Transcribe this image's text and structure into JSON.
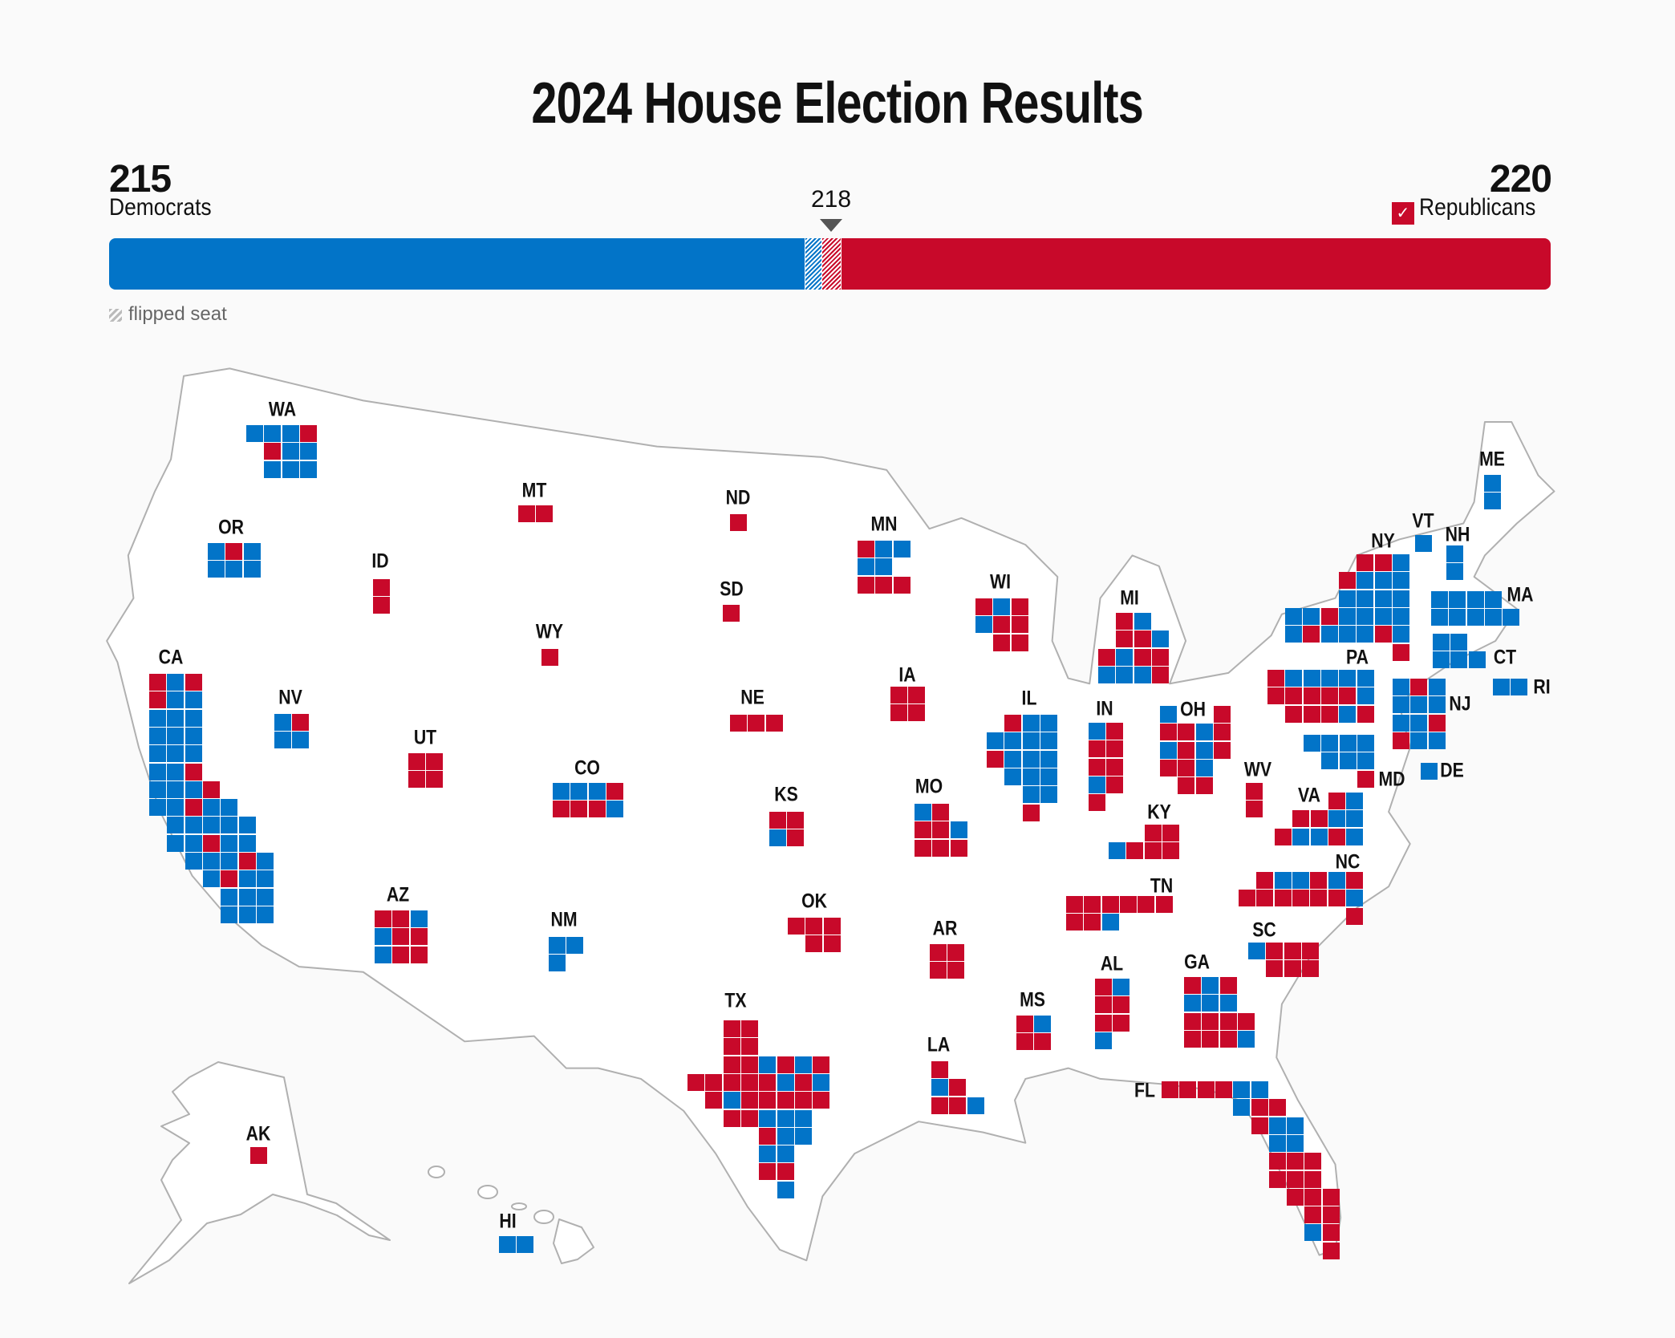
{
  "title": "2024 House Election Results",
  "colors": {
    "dem": "#0274c8",
    "rep": "#c8092a",
    "flipped_legend": "#bbbbbb"
  },
  "summary": {
    "total_seats": 435,
    "majority_label": "218",
    "dem": {
      "count": "215",
      "label": "Democrats",
      "seats": 215,
      "flipped": 5
    },
    "rep": {
      "count": "220",
      "label": "Republicans",
      "seats": 220,
      "flipped": 6,
      "winner_icon": "checkmark-icon",
      "check": "✓"
    }
  },
  "legend": {
    "flipped_label": "flipped seat"
  },
  "states": [
    {
      "abbr": "WA",
      "cells": [
        "DDDR",
        ".RDD",
        ".DDD"
      ]
    },
    {
      "abbr": "OR",
      "cells": [
        "DRD",
        "DDD"
      ]
    },
    {
      "abbr": "CA",
      "cells": [
        "RDR",
        "RDD",
        "DDD",
        "DDD",
        "DDD",
        "DDR",
        "DDDR",
        "DDRDD",
        ".DDDDD",
        ".DDRDD",
        "..DDDRD",
        "...DRDD",
        "....DDD",
        "....DDD"
      ]
    },
    {
      "abbr": "NV",
      "cells": [
        "DR",
        "DD"
      ]
    },
    {
      "abbr": "ID",
      "cells": [
        "R",
        "R"
      ]
    },
    {
      "abbr": "MT",
      "cells": [
        "RR"
      ]
    },
    {
      "abbr": "WY",
      "cells": [
        "R"
      ]
    },
    {
      "abbr": "UT",
      "cells": [
        "RR",
        "RR"
      ]
    },
    {
      "abbr": "CO",
      "cells": [
        "DDDR",
        "RRRD"
      ]
    },
    {
      "abbr": "AZ",
      "cells": [
        "RRD",
        "DRR",
        "DRR"
      ]
    },
    {
      "abbr": "NM",
      "cells": [
        "DD",
        "D."
      ]
    },
    {
      "abbr": "ND",
      "cells": [
        "R"
      ]
    },
    {
      "abbr": "SD",
      "cells": [
        "R"
      ]
    },
    {
      "abbr": "NE",
      "cells": [
        "RRR"
      ]
    },
    {
      "abbr": "KS",
      "cells": [
        "RR",
        "DR"
      ]
    },
    {
      "abbr": "OK",
      "cells": [
        "RRR",
        ".RR"
      ]
    },
    {
      "abbr": "TX",
      "cells": [
        "..RR",
        "..RR",
        "..RRDRDR",
        "RRRRRDRD",
        ".RDRRRRR",
        "..RRDDD",
        "....RDD",
        "....DD",
        "....RR",
        ".....D"
      ]
    },
    {
      "abbr": "MN",
      "cells": [
        "RDD",
        "DD.",
        "RRR"
      ]
    },
    {
      "abbr": "IA",
      "cells": [
        "RR",
        "RR"
      ]
    },
    {
      "abbr": "MO",
      "cells": [
        "DR.",
        "RRD",
        "RRR"
      ]
    },
    {
      "abbr": "AR",
      "cells": [
        "RR",
        "RR"
      ]
    },
    {
      "abbr": "LA",
      "cells": [
        "R..",
        "DR.",
        "RRD"
      ]
    },
    {
      "abbr": "WI",
      "cells": [
        "RDR",
        "DRR",
        ".RR"
      ]
    },
    {
      "abbr": "IL",
      "cells": [
        ".RDD",
        "DDDD",
        "RDDD",
        ".DDD",
        "..DD",
        "..R."
      ]
    },
    {
      "abbr": "MI",
      "cells": [
        ".RD.",
        ".RRD",
        "RDRR",
        "DDDR"
      ]
    },
    {
      "abbr": "IN",
      "cells": [
        "DR",
        "RR",
        "RR",
        "DR",
        "R."
      ]
    },
    {
      "abbr": "OH",
      "cells": [
        "D..R",
        "RRDR",
        "DRDR",
        "RRD.",
        ".RR."
      ]
    },
    {
      "abbr": "KY",
      "cells": [
        "..RR",
        "DRRR"
      ]
    },
    {
      "abbr": "TN",
      "cells": [
        "RRRRRR",
        "RRD..."
      ]
    },
    {
      "abbr": "MS",
      "cells": [
        "RD",
        "RR"
      ]
    },
    {
      "abbr": "AL",
      "cells": [
        "RD",
        "RR",
        "RR",
        "D."
      ]
    },
    {
      "abbr": "GA",
      "cells": [
        "RDR.",
        "DDD.",
        "RRRR",
        "RRRD"
      ]
    },
    {
      "abbr": "FL",
      "cells": [
        "RRRRDD",
        "....DRR",
        ".....RDD",
        "......DD",
        "......RRR",
        "......RRR",
        ".......RRR",
        "........RR",
        "........DR",
        ".........R"
      ]
    },
    {
      "abbr": "SC",
      "cells": [
        "DRRR",
        ".RRR"
      ]
    },
    {
      "abbr": "NC",
      "cells": [
        ".RDDRDR",
        "RRRRRRD",
        "......R"
      ]
    },
    {
      "abbr": "VA",
      "cells": [
        "...RD",
        ".RRDD",
        "RDDRD"
      ]
    },
    {
      "abbr": "WV",
      "cells": [
        "R",
        "R"
      ]
    },
    {
      "abbr": "MD",
      "cells": [
        "DDDD",
        ".DDD",
        "...R"
      ]
    },
    {
      "abbr": "DE",
      "cells": [
        "D"
      ]
    },
    {
      "abbr": "PA",
      "cells": [
        "RDDDDD",
        "RRRRRD",
        ".RRRDR"
      ]
    },
    {
      "abbr": "NJ",
      "cells": [
        "DRD",
        "DDD",
        "DDR",
        "RDD"
      ]
    },
    {
      "abbr": "NY",
      "cells": [
        "....RRD",
        "...RDDD",
        "...DDDD",
        "DDRDDDD",
        "DRDDDRD",
        "......R"
      ]
    },
    {
      "abbr": "CT",
      "cells": [
        "DD.",
        "DDD"
      ]
    },
    {
      "abbr": "RI",
      "cells": [
        "DD"
      ]
    },
    {
      "abbr": "MA",
      "cells": [
        "DDDD",
        "DDDDD"
      ]
    },
    {
      "abbr": "VT",
      "cells": [
        "D"
      ]
    },
    {
      "abbr": "NH",
      "cells": [
        "D",
        "D"
      ]
    },
    {
      "abbr": "ME",
      "cells": [
        "D",
        "D"
      ]
    },
    {
      "abbr": "AK",
      "cells": [
        "R"
      ]
    },
    {
      "abbr": "HI",
      "cells": [
        "DD"
      ]
    }
  ]
}
